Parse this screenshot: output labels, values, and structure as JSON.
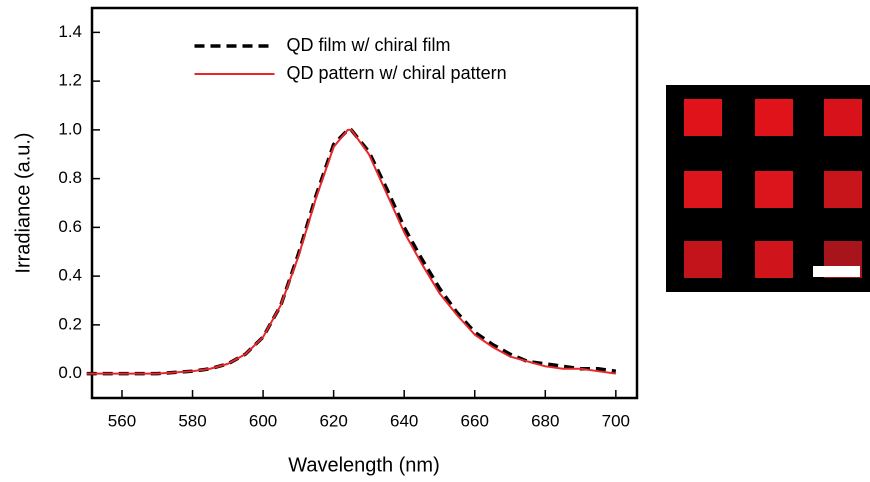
{
  "chart_data": {
    "type": "line",
    "x_label": "Wavelength (nm)",
    "y_label": "Irradiance (a.u.)",
    "x": [
      550,
      560,
      570,
      580,
      585,
      590,
      595,
      600,
      605,
      610,
      615,
      620,
      624,
      625,
      630,
      635,
      640,
      645,
      650,
      655,
      660,
      665,
      670,
      675,
      680,
      685,
      690,
      695,
      700
    ],
    "series": [
      {
        "name": "QD film w/ chiral film",
        "color": "#000000",
        "linestyle": "dashed",
        "values": [
          0.0,
          0.0,
          0.0,
          0.01,
          0.02,
          0.04,
          0.08,
          0.15,
          0.28,
          0.49,
          0.73,
          0.94,
          1.0,
          1.0,
          0.91,
          0.76,
          0.6,
          0.47,
          0.35,
          0.25,
          0.17,
          0.12,
          0.08,
          0.05,
          0.04,
          0.03,
          0.02,
          0.02,
          0.01
        ]
      },
      {
        "name": "QD pattern w/ chiral pattern",
        "color": "#e8272a",
        "linestyle": "solid",
        "values": [
          0.0,
          0.0,
          0.0,
          0.01,
          0.02,
          0.04,
          0.08,
          0.15,
          0.28,
          0.48,
          0.72,
          0.93,
          1.0,
          1.0,
          0.9,
          0.74,
          0.58,
          0.45,
          0.33,
          0.24,
          0.16,
          0.11,
          0.07,
          0.05,
          0.03,
          0.02,
          0.02,
          0.01,
          0.0
        ]
      }
    ],
    "xlim": [
      551.5,
      706
    ],
    "ylim": [
      -0.1,
      1.5
    ],
    "xticks": [
      560,
      580,
      600,
      620,
      640,
      660,
      680,
      700
    ],
    "yticks": [
      {
        "value": 0,
        "label": "0.0"
      },
      0.2,
      0.4,
      0.6,
      0.8,
      {
        "value": 1,
        "label": "1.0"
      },
      1.2,
      1.4
    ],
    "legend": "upper center"
  }
}
